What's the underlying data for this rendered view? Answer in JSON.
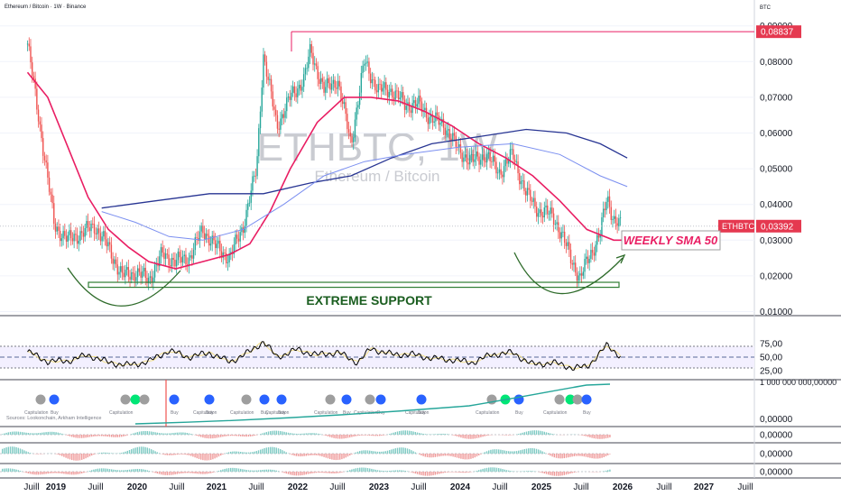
{
  "header": {
    "title": "Ethereum / Bitcoin · 1W · Binance",
    "currency": "BTC"
  },
  "watermark": {
    "symbol": "ETHBTC, 1W",
    "name": "Ethereum / Bitcoin"
  },
  "annotations": {
    "support_label": "EXTREME SUPPORT",
    "sma_label": "WEEKLY SMA 50",
    "sources": "Sources: Lookonchain, Arkham Intelligence"
  },
  "colors": {
    "up": "#26a69a",
    "down": "#ef5350",
    "sma50": "#e91e63",
    "sma_slow": "#283593",
    "sma_slow2": "#7b8ff0",
    "support": "#2e7d32",
    "rsi": "#000000",
    "rsi_band": "#787b86"
  },
  "chart_data": [
    {
      "type": "candlestick",
      "price_axis": {
        "ticks": [
          "0,01000",
          "0,02000",
          "0,03000",
          "0,04000",
          "0,05000",
          "0,06000",
          "0,07000",
          "0,08000",
          "0,09000"
        ],
        "last_label": "ETHBTC",
        "last_value": "0,03392",
        "high_value": "0,08837"
      },
      "time_axis": {
        "ticks": [
          "Juill",
          "2019",
          "Juill",
          "2020",
          "Juill",
          "2021",
          "Juill",
          "2022",
          "Juill",
          "2023",
          "Juill",
          "2024",
          "Juill",
          "2025",
          "Juill",
          "2026",
          "Juill",
          "2027",
          "Juill"
        ]
      },
      "series": [
        {
          "name": "ETHBTC",
          "kind": "close",
          "points": [
            [
              "2018-06",
              0.085
            ],
            [
              "2018-08",
              0.06
            ],
            [
              "2018-10",
              0.034
            ],
            [
              "2018-12",
              0.03
            ],
            [
              "2019-02",
              0.032
            ],
            [
              "2019-04",
              0.034
            ],
            [
              "2019-06",
              0.028
            ],
            [
              "2019-08",
              0.02
            ],
            [
              "2019-10",
              0.021
            ],
            [
              "2019-12",
              0.019
            ],
            [
              "2020-02",
              0.026
            ],
            [
              "2020-04",
              0.024
            ],
            [
              "2020-06",
              0.025
            ],
            [
              "2020-08",
              0.033
            ],
            [
              "2020-10",
              0.028
            ],
            [
              "2020-12",
              0.025
            ],
            [
              "2021-02",
              0.034
            ],
            [
              "2021-04",
              0.05
            ],
            [
              "2021-05",
              0.082
            ],
            [
              "2021-07",
              0.062
            ],
            [
              "2021-09",
              0.07
            ],
            [
              "2021-11",
              0.075
            ],
            [
              "2021-12",
              0.083
            ],
            [
              "2022-02",
              0.072
            ],
            [
              "2022-04",
              0.075
            ],
            [
              "2022-06",
              0.057
            ],
            [
              "2022-08",
              0.08
            ],
            [
              "2022-10",
              0.072
            ],
            [
              "2022-12",
              0.072
            ],
            [
              "2023-02",
              0.068
            ],
            [
              "2023-04",
              0.068
            ],
            [
              "2023-06",
              0.064
            ],
            [
              "2023-08",
              0.062
            ],
            [
              "2023-10",
              0.055
            ],
            [
              "2023-12",
              0.052
            ],
            [
              "2024-02",
              0.054
            ],
            [
              "2024-04",
              0.049
            ],
            [
              "2024-06",
              0.054
            ],
            [
              "2024-08",
              0.043
            ],
            [
              "2024-10",
              0.038
            ],
            [
              "2024-12",
              0.037
            ],
            [
              "2025-02",
              0.028
            ],
            [
              "2025-04",
              0.019
            ],
            [
              "2025-05",
              0.024
            ],
            [
              "2025-07",
              0.032
            ],
            [
              "2025-08",
              0.042
            ],
            [
              "2025-09",
              0.036
            ],
            [
              "2025-10",
              0.034
            ]
          ]
        },
        {
          "name": "WEEKLY SMA 50",
          "points": [
            [
              "2018-06",
              0.077
            ],
            [
              "2018-09",
              0.07
            ],
            [
              "2018-12",
              0.056
            ],
            [
              "2019-03",
              0.042
            ],
            [
              "2019-06",
              0.033
            ],
            [
              "2019-09",
              0.028
            ],
            [
              "2019-12",
              0.024
            ],
            [
              "2020-04",
              0.022
            ],
            [
              "2020-08",
              0.024
            ],
            [
              "2020-12",
              0.026
            ],
            [
              "2021-03",
              0.029
            ],
            [
              "2021-06",
              0.038
            ],
            [
              "2021-09",
              0.05
            ],
            [
              "2022-01",
              0.063
            ],
            [
              "2022-05",
              0.07
            ],
            [
              "2022-09",
              0.07
            ],
            [
              "2023-01",
              0.069
            ],
            [
              "2023-05",
              0.066
            ],
            [
              "2023-09",
              0.062
            ],
            [
              "2024-01",
              0.057
            ],
            [
              "2024-05",
              0.053
            ],
            [
              "2024-09",
              0.048
            ],
            [
              "2025-01",
              0.041
            ],
            [
              "2025-05",
              0.033
            ],
            [
              "2025-09",
              0.03
            ],
            [
              "2025-11",
              0.03
            ]
          ]
        },
        {
          "name": "SMA slow (dark)",
          "points": [
            [
              "2019-05",
              0.039
            ],
            [
              "2020-01",
              0.041
            ],
            [
              "2020-09",
              0.043
            ],
            [
              "2021-05",
              0.043
            ],
            [
              "2021-12",
              0.046
            ],
            [
              "2022-06",
              0.048
            ],
            [
              "2022-12",
              0.053
            ],
            [
              "2023-06",
              0.057
            ],
            [
              "2024-01",
              0.059
            ],
            [
              "2024-08",
              0.061
            ],
            [
              "2025-02",
              0.06
            ],
            [
              "2025-07",
              0.057
            ],
            [
              "2025-11",
              0.053
            ]
          ]
        },
        {
          "name": "SMA slow (light)",
          "points": [
            [
              "2019-05",
              0.038
            ],
            [
              "2019-10",
              0.035
            ],
            [
              "2020-03",
              0.031
            ],
            [
              "2020-08",
              0.03
            ],
            [
              "2021-02",
              0.033
            ],
            [
              "2021-08",
              0.04
            ],
            [
              "2022-02",
              0.048
            ],
            [
              "2022-08",
              0.052
            ],
            [
              "2023-02",
              0.054
            ],
            [
              "2023-10",
              0.056
            ],
            [
              "2024-06",
              0.057
            ],
            [
              "2025-01",
              0.054
            ],
            [
              "2025-07",
              0.048
            ],
            [
              "2025-11",
              0.045
            ]
          ]
        }
      ],
      "annotations": {
        "high_line": 0.08837,
        "support_zone": [
          0.0168,
          0.0182
        ]
      }
    },
    {
      "type": "line",
      "name": "RSI",
      "y_ticks": [
        "25,00",
        "50,00",
        "75,00"
      ],
      "bands": [
        30,
        50,
        70
      ],
      "points": [
        [
          "2018-06",
          60
        ],
        [
          "2018-09",
          42
        ],
        [
          "2018-12",
          43
        ],
        [
          "2019-03",
          54
        ],
        [
          "2019-06",
          40
        ],
        [
          "2019-09",
          35
        ],
        [
          "2019-12",
          42
        ],
        [
          "2020-03",
          62
        ],
        [
          "2020-06",
          50
        ],
        [
          "2020-09",
          58
        ],
        [
          "2020-12",
          41
        ],
        [
          "2021-03",
          60
        ],
        [
          "2021-05",
          79
        ],
        [
          "2021-07",
          50
        ],
        [
          "2021-10",
          64
        ],
        [
          "2022-01",
          54
        ],
        [
          "2022-04",
          59
        ],
        [
          "2022-07",
          40
        ],
        [
          "2022-09",
          66
        ],
        [
          "2022-12",
          55
        ],
        [
          "2023-03",
          55
        ],
        [
          "2023-06",
          48
        ],
        [
          "2023-09",
          45
        ],
        [
          "2023-12",
          40
        ],
        [
          "2024-03",
          55
        ],
        [
          "2024-06",
          58
        ],
        [
          "2024-09",
          36
        ],
        [
          "2024-12",
          40
        ],
        [
          "2025-03",
          30
        ],
        [
          "2025-05",
          32
        ],
        [
          "2025-07",
          58
        ],
        [
          "2025-08",
          72
        ],
        [
          "2025-10",
          52
        ]
      ]
    },
    {
      "type": "line",
      "name": "Accumulation",
      "y_ticks": [
        "0,00000",
        "1 000 000 000,00000"
      ],
      "marker_labels": [
        "Capitulation",
        "Buy"
      ]
    },
    {
      "type": "area",
      "name": "Oscillators",
      "y_ticks": [
        "0,00000",
        "0,00000",
        "0,00000"
      ]
    }
  ]
}
